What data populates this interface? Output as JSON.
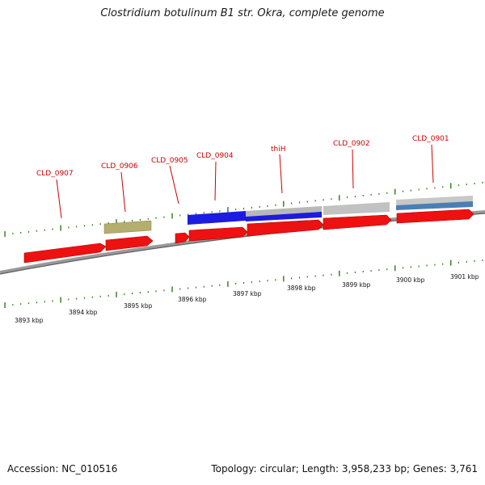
{
  "title": "Clostridium botulinum B1 str. Okra, complete genome",
  "footer": {
    "accession": "Accession: NC_010516",
    "summary": "Topology: circular; Length: 3,958,233 bp; Genes: 3,761"
  },
  "colors": {
    "cds": "#ee1111",
    "gene_olive": "#b5ad6b",
    "gene_blue": "#1c1ce0",
    "gene_grey": "#b8b8b8",
    "gene_steelblue": "#4a7fb5",
    "backbone": "#7a7a7a",
    "tick": "#2c7a1a",
    "label": "#cc0000"
  },
  "gene_labels": [
    "CLD_0907",
    "CLD_0906",
    "CLD_0905",
    "CLD_0904",
    "thiH",
    "CLD_0902",
    "CLD_0901"
  ],
  "scale_labels": [
    "3893 kbp",
    "3894 kbp",
    "3895 kbp",
    "3896 kbp",
    "3897 kbp",
    "3898 kbp",
    "3899 kbp",
    "3900 kbp",
    "3901 kbp"
  ]
}
